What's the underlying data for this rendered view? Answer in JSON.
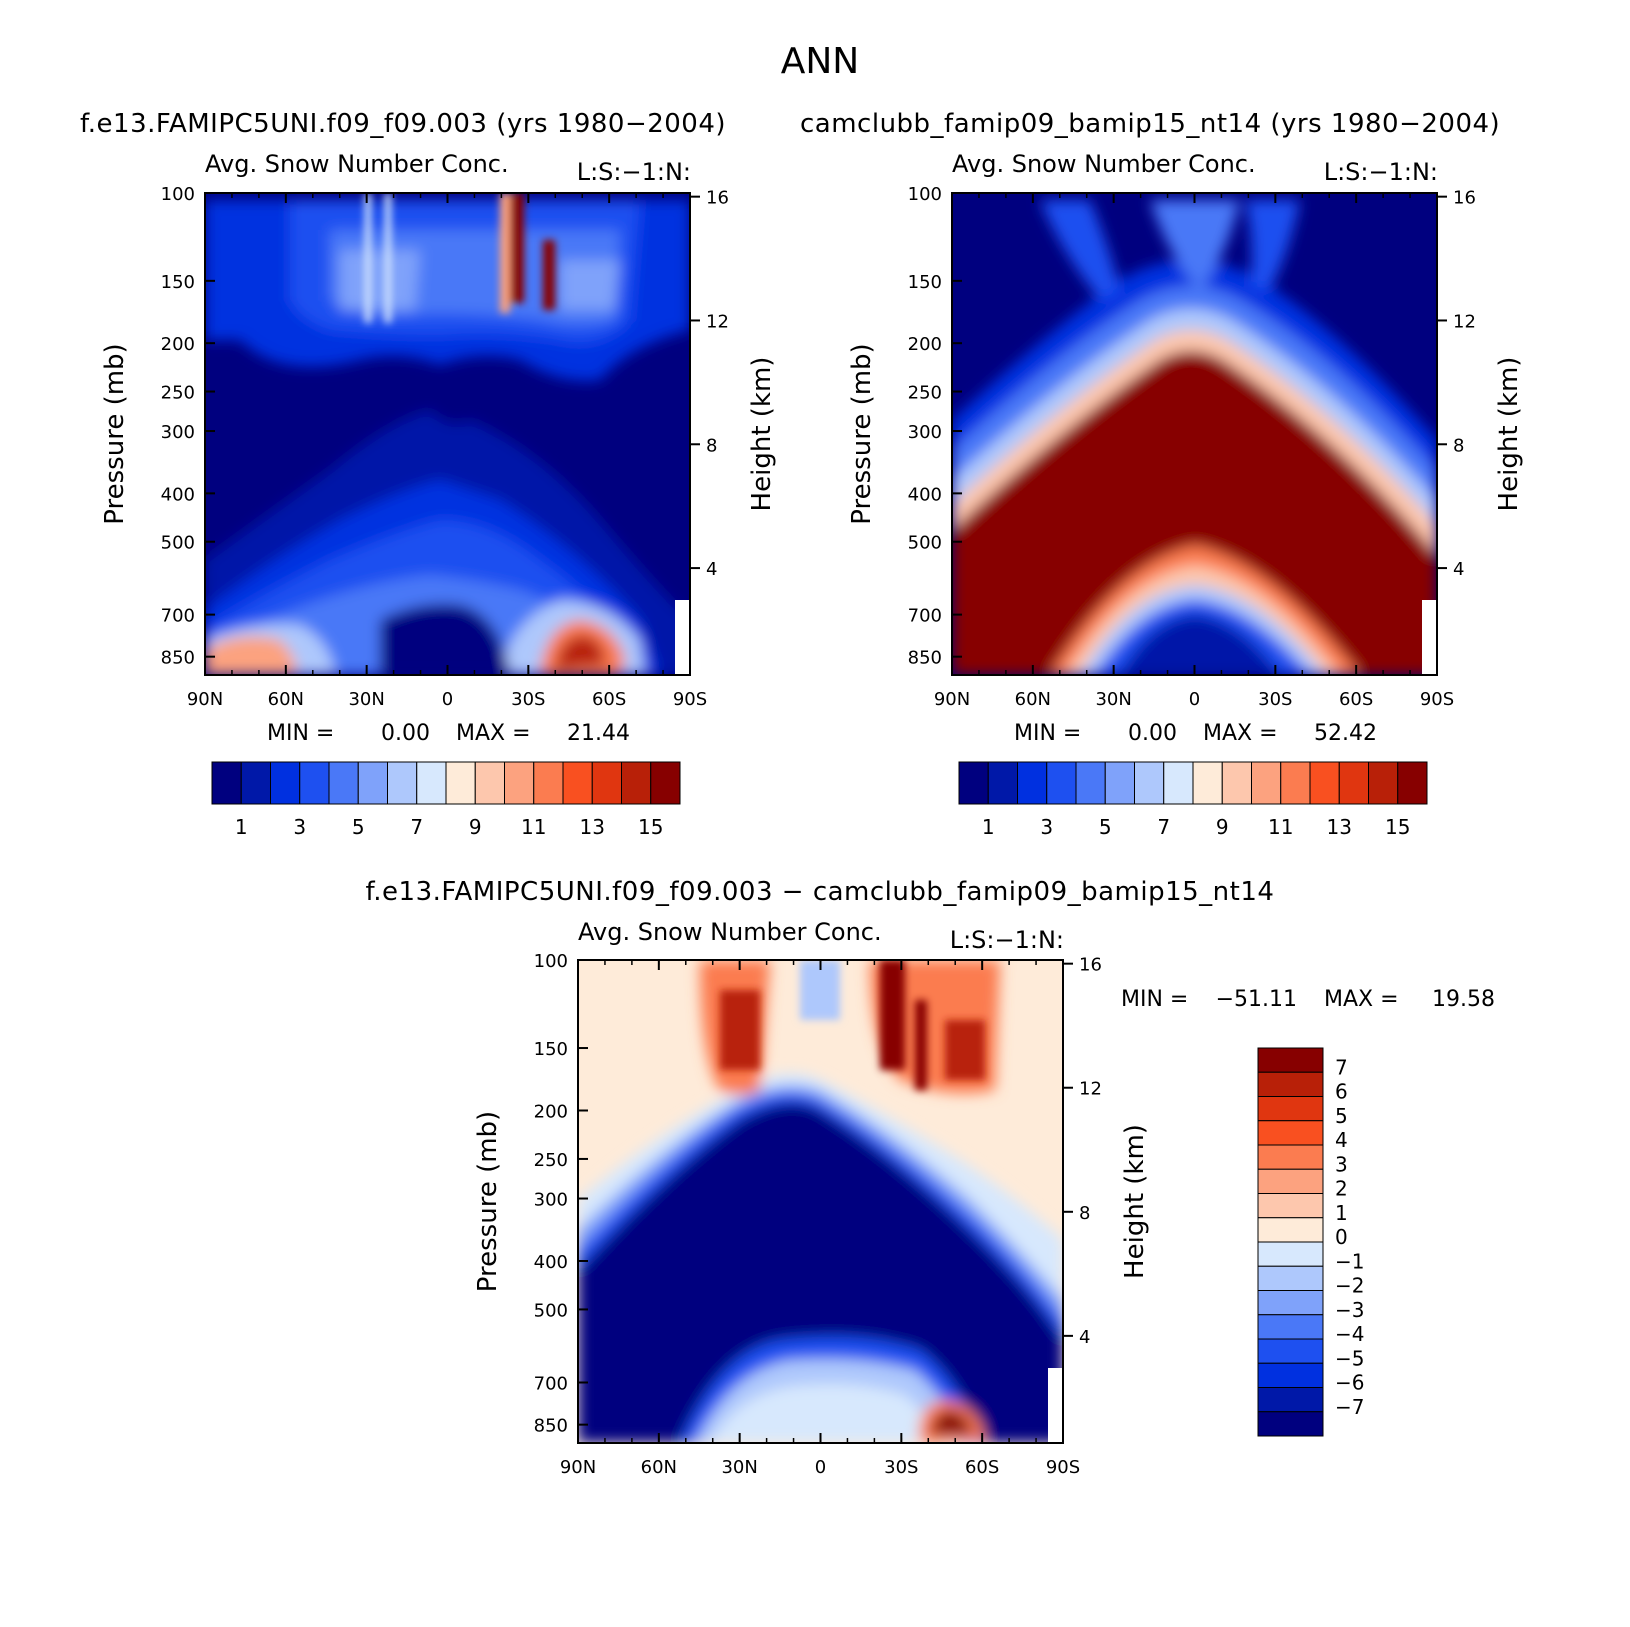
{
  "figure_title": "ANN",
  "colors": {
    "seq16": [
      "#00007f",
      "#0018a8",
      "#0030e0",
      "#1e50f0",
      "#4a78f7",
      "#7fa2fa",
      "#aec8fc",
      "#d7e8fd",
      "#feebd9",
      "#fdc7ad",
      "#fca27f",
      "#fb7c50",
      "#f95020",
      "#e03610",
      "#b82008",
      "#870000"
    ],
    "div15": [
      "#00007f",
      "#0018a8",
      "#0030e0",
      "#1e50f0",
      "#4a78f7",
      "#7fa2fa",
      "#aec8fc",
      "#d7e8fd",
      "#feebd9",
      "#fdc7ad",
      "#fca27f",
      "#fb7c50",
      "#f95020",
      "#e03610",
      "#b82008",
      "#870000"
    ]
  },
  "chart_data": [
    {
      "type": "contour",
      "case_title": "f.e13.FAMIPC5UNI.f09_f09.003 (yrs 1980−2004)",
      "title": "Avg. Snow Number Conc.",
      "right_title": "L:S:−1:N:",
      "xlabel": "",
      "ylabel": "Pressure (mb)",
      "ylabel_right": "Height (km)",
      "x_ticks": [
        "90N",
        "60N",
        "30N",
        "0",
        "30S",
        "60S",
        "90S"
      ],
      "y_ticks": [
        "100",
        "150",
        "200",
        "250",
        "300",
        "400",
        "500",
        "700",
        "850"
      ],
      "y_ticks_right": [
        "16",
        "12",
        "8",
        "4"
      ],
      "min_label": "MIN =",
      "min_value": "0.00",
      "max_label": "MAX =",
      "max_value": "21.44",
      "levels": [
        "1",
        "3",
        "5",
        "7",
        "9",
        "11",
        "13",
        "15"
      ]
    },
    {
      "type": "contour",
      "case_title": "camclubb_famip09_bamip15_nt14 (yrs 1980−2004)",
      "title": "Avg. Snow Number Conc.",
      "right_title": "L:S:−1:N:",
      "xlabel": "",
      "ylabel": "Pressure (mb)",
      "ylabel_right": "Height (km)",
      "x_ticks": [
        "90N",
        "60N",
        "30N",
        "0",
        "30S",
        "60S",
        "90S"
      ],
      "y_ticks": [
        "100",
        "150",
        "200",
        "250",
        "300",
        "400",
        "500",
        "700",
        "850"
      ],
      "y_ticks_right": [
        "16",
        "12",
        "8",
        "4"
      ],
      "min_label": "MIN =",
      "min_value": "0.00",
      "max_label": "MAX =",
      "max_value": "52.42",
      "levels": [
        "1",
        "3",
        "5",
        "7",
        "9",
        "11",
        "13",
        "15"
      ]
    },
    {
      "type": "contour",
      "case_title": "f.e13.FAMIPC5UNI.f09_f09.003 − camclubb_famip09_bamip15_nt14",
      "title": "Avg. Snow Number Conc.",
      "right_title": "L:S:−1:N:",
      "xlabel": "",
      "ylabel": "Pressure (mb)",
      "ylabel_right": "Height (km)",
      "x_ticks": [
        "90N",
        "60N",
        "30N",
        "0",
        "30S",
        "60S",
        "90S"
      ],
      "y_ticks": [
        "100",
        "150",
        "200",
        "250",
        "300",
        "400",
        "500",
        "700",
        "850"
      ],
      "y_ticks_right": [
        "16",
        "12",
        "8",
        "4"
      ],
      "min_label": "MIN =",
      "min_value": "−51.11",
      "max_label": "MAX =",
      "max_value": "19.58",
      "levels": [
        "7",
        "6",
        "5",
        "4",
        "3",
        "2",
        "1",
        "0",
        "−1",
        "−2",
        "−3",
        "−4",
        "−5",
        "−6",
        "−7"
      ]
    }
  ]
}
